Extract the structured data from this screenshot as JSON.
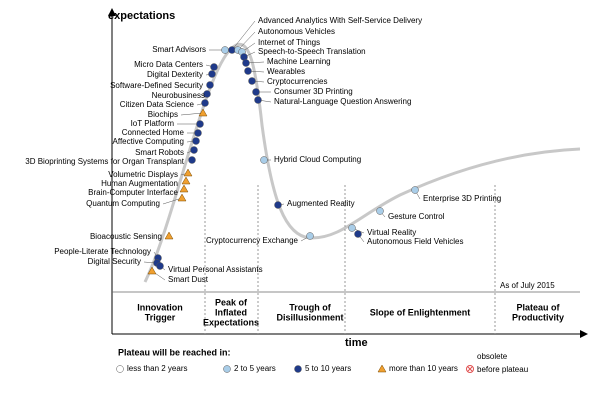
{
  "axes": {
    "y_label": "expectations",
    "x_label": "time"
  },
  "note": "As of July 2015",
  "phases": [
    {
      "lines": [
        "Innovation",
        "Trigger"
      ]
    },
    {
      "lines": [
        "Peak of",
        "Inflated",
        "Expectations"
      ]
    },
    {
      "lines": [
        "Trough of",
        "Disillusionment"
      ]
    },
    {
      "lines": [
        "Slope of Enlightenment"
      ]
    },
    {
      "lines": [
        "Plateau of",
        "Productivity"
      ]
    }
  ],
  "technologies": [
    {
      "label": "Advanced Analytics With Self-Service Delivery",
      "color": "#1f3a8a"
    },
    {
      "label": "Autonomous Vehicles",
      "color": "#a9cde8"
    },
    {
      "label": "Internet of Things",
      "color": "#a9cde8"
    },
    {
      "label": "Speech-to-Speech Translation",
      "color": "#1f3a8a"
    },
    {
      "label": "Machine Learning",
      "color": "#1f3a8a"
    },
    {
      "label": "Wearables",
      "color": "#1f3a8a"
    },
    {
      "label": "Cryptocurrencies",
      "color": "#1f3a8a"
    },
    {
      "label": "Consumer 3D Printing",
      "color": "#1f3a8a"
    },
    {
      "label": "Natural-Language Question Answering",
      "color": "#1f3a8a"
    },
    {
      "label": "Hybrid Cloud Computing",
      "color": "#a9cde8"
    },
    {
      "label": "Augmented Reality",
      "color": "#1f3a8a"
    },
    {
      "label": "Cryptocurrency Exchange",
      "color": "#a9cde8"
    },
    {
      "label": "Virtual Reality",
      "color": "#a9cde8"
    },
    {
      "label": "Autonomous Field Vehicles",
      "color": "#1f3a8a"
    },
    {
      "label": "Gesture Control",
      "color": "#a9cde8"
    },
    {
      "label": "Enterprise 3D Printing",
      "color": "#a9cde8"
    },
    {
      "label": "Smart Advisors",
      "color": "#a9cde8"
    },
    {
      "label": "Micro Data Centers",
      "color": "#1f3a8a"
    },
    {
      "label": "Digital Dexterity",
      "color": "#1f3a8a"
    },
    {
      "label": "Software-Defined Security",
      "color": "#1f3a8a"
    },
    {
      "label": "Neurobusiness",
      "color": "#1f3a8a"
    },
    {
      "label": "Citizen Data Science",
      "color": "#1f3a8a"
    },
    {
      "label": "Biochips",
      "color": "#f0a030"
    },
    {
      "label": "IoT Platform",
      "color": "#1f3a8a"
    },
    {
      "label": "Connected Home",
      "color": "#1f3a8a"
    },
    {
      "label": "Affective Computing",
      "color": "#1f3a8a"
    },
    {
      "label": "Smart Robots",
      "color": "#1f3a8a"
    },
    {
      "label": "3D Bioprinting Systems for Organ Transplant",
      "color": "#1f3a8a"
    },
    {
      "label": "Volumetric Displays",
      "color": "#f0a030"
    },
    {
      "label": "Human Augmentation",
      "color": "#f0a030"
    },
    {
      "label": "Brain-Computer Interface",
      "color": "#f0a030"
    },
    {
      "label": "Quantum Computing",
      "color": "#f0a030"
    },
    {
      "label": "Bioacoustic Sensing",
      "color": "#f0a030"
    },
    {
      "label": "People-Literate Technology",
      "color": "#1f3a8a"
    },
    {
      "label": "Digital Security",
      "color": "#1f3a8a"
    },
    {
      "label": "Virtual Personal Assistants",
      "color": "#1f3a8a"
    },
    {
      "label": "Smart Dust",
      "color": "#f0a030"
    }
  ],
  "legend": {
    "title": "Plateau will be reached in:",
    "items": [
      {
        "lines": [
          "less than 2 years"
        ],
        "color": "#ffffff",
        "shape": "circle"
      },
      {
        "lines": [
          "2 to 5 years"
        ],
        "color": "#a9cde8",
        "shape": "circle"
      },
      {
        "lines": [
          "5 to 10 years"
        ],
        "color": "#1f3a8a",
        "shape": "circle"
      },
      {
        "lines": [
          "more than 10 years"
        ],
        "color": "#f0a030",
        "shape": "triangle"
      },
      {
        "lines": [
          "obsolete",
          "before plateau"
        ],
        "color": "#e05050",
        "shape": "cross"
      }
    ]
  }
}
